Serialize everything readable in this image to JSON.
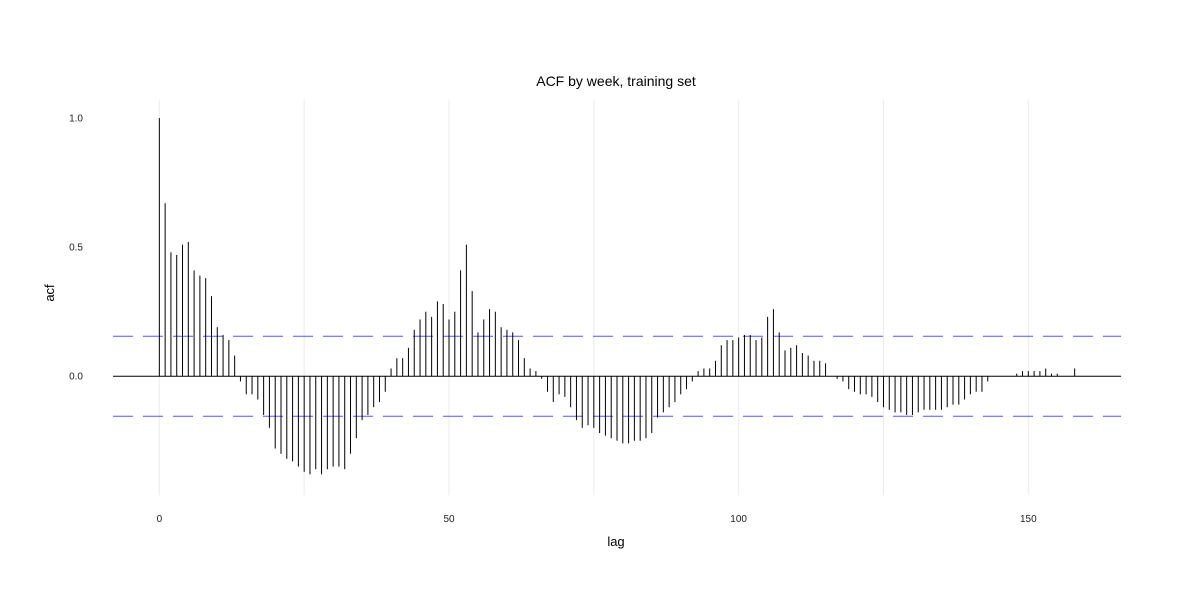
{
  "chart_data": {
    "type": "bar",
    "title": "ACF by week, training set",
    "xlabel": "lag",
    "ylabel": "acf",
    "xlim": [
      -8,
      166
    ],
    "ylim": [
      -0.46,
      1.07
    ],
    "x_ticks": [
      0,
      50,
      100,
      150
    ],
    "x_tick_labels": [
      "0",
      "50",
      "100",
      "150"
    ],
    "y_ticks": [
      0.0,
      0.5,
      1.0
    ],
    "y_tick_labels": [
      "0.0",
      "0.5",
      "1.0"
    ],
    "grid": true,
    "legend": "none",
    "confidence_bound": 0.155,
    "colors": {
      "bars": "#000000",
      "zero_line": "#000000",
      "confidence": "#5555ff",
      "grid": "#ebebeb"
    },
    "lags": [
      0,
      1,
      2,
      3,
      4,
      5,
      6,
      7,
      8,
      9,
      10,
      11,
      12,
      13,
      14,
      15,
      16,
      17,
      18,
      19,
      20,
      21,
      22,
      23,
      24,
      25,
      26,
      27,
      28,
      29,
      30,
      31,
      32,
      33,
      34,
      35,
      36,
      37,
      38,
      39,
      40,
      41,
      42,
      43,
      44,
      45,
      46,
      47,
      48,
      49,
      50,
      51,
      52,
      53,
      54,
      55,
      56,
      57,
      58,
      59,
      60,
      61,
      62,
      63,
      64,
      65,
      66,
      67,
      68,
      69,
      70,
      71,
      72,
      73,
      74,
      75,
      76,
      77,
      78,
      79,
      80,
      81,
      82,
      83,
      84,
      85,
      86,
      87,
      88,
      89,
      90,
      91,
      92,
      93,
      94,
      95,
      96,
      97,
      98,
      99,
      100,
      101,
      102,
      103,
      104,
      105,
      106,
      107,
      108,
      109,
      110,
      111,
      112,
      113,
      114,
      115,
      116,
      117,
      118,
      119,
      120,
      121,
      122,
      123,
      124,
      125,
      126,
      127,
      128,
      129,
      130,
      131,
      132,
      133,
      134,
      135,
      136,
      137,
      138,
      139,
      140,
      141,
      142,
      143,
      144,
      145,
      146,
      147,
      148,
      149,
      150,
      151,
      152,
      153,
      154,
      155,
      156,
      157,
      158
    ],
    "values": [
      1.0,
      0.67,
      0.48,
      0.47,
      0.51,
      0.52,
      0.41,
      0.39,
      0.38,
      0.31,
      0.19,
      0.16,
      0.14,
      0.08,
      -0.02,
      -0.07,
      -0.07,
      -0.09,
      -0.15,
      -0.2,
      -0.28,
      -0.3,
      -0.32,
      -0.33,
      -0.35,
      -0.37,
      -0.38,
      -0.36,
      -0.38,
      -0.36,
      -0.35,
      -0.35,
      -0.36,
      -0.3,
      -0.24,
      -0.17,
      -0.15,
      -0.12,
      -0.1,
      -0.06,
      0.03,
      0.07,
      0.07,
      0.11,
      0.18,
      0.22,
      0.25,
      0.23,
      0.29,
      0.28,
      0.22,
      0.25,
      0.41,
      0.51,
      0.33,
      0.17,
      0.22,
      0.26,
      0.25,
      0.19,
      0.18,
      0.17,
      0.14,
      0.07,
      0.03,
      0.02,
      -0.01,
      -0.06,
      -0.1,
      -0.07,
      -0.08,
      -0.12,
      -0.17,
      -0.2,
      -0.19,
      -0.2,
      -0.22,
      -0.23,
      -0.24,
      -0.25,
      -0.26,
      -0.26,
      -0.25,
      -0.25,
      -0.24,
      -0.22,
      -0.16,
      -0.14,
      -0.12,
      -0.1,
      -0.07,
      -0.05,
      -0.02,
      0.02,
      0.03,
      0.03,
      0.06,
      0.12,
      0.14,
      0.14,
      0.15,
      0.16,
      0.16,
      0.14,
      0.15,
      0.23,
      0.26,
      0.17,
      0.1,
      0.11,
      0.12,
      0.09,
      0.08,
      0.06,
      0.06,
      0.05,
      0.0,
      -0.01,
      -0.02,
      -0.05,
      -0.06,
      -0.07,
      -0.07,
      -0.08,
      -0.1,
      -0.12,
      -0.13,
      -0.14,
      -0.14,
      -0.15,
      -0.15,
      -0.14,
      -0.13,
      -0.13,
      -0.13,
      -0.13,
      -0.12,
      -0.11,
      -0.11,
      -0.09,
      -0.07,
      -0.06,
      -0.06,
      -0.02,
      0.0,
      0.0,
      0.0,
      0.0,
      0.01,
      0.02,
      0.02,
      0.02,
      0.02,
      0.03,
      0.01,
      0.01,
      0.0,
      0.0,
      0.03
    ]
  }
}
